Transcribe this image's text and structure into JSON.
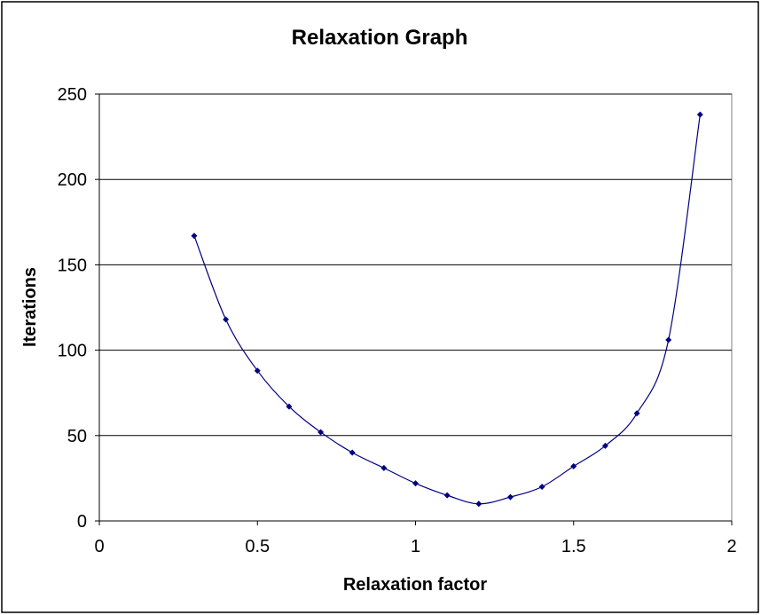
{
  "chart_data": {
    "type": "scatter",
    "title": "Relaxation Graph",
    "xlabel": "Relaxation factor",
    "ylabel": "Iterations",
    "xlim": [
      0,
      2
    ],
    "ylim": [
      0,
      250
    ],
    "x_ticks": [
      "0",
      "0.5",
      "1",
      "1.5",
      "2"
    ],
    "y_ticks": [
      "0",
      "50",
      "100",
      "150",
      "200",
      "250"
    ],
    "grid": "horizontal",
    "legend": "none",
    "series": [
      {
        "color": "#000080",
        "marker": "diamond",
        "line": "smoothed",
        "points": [
          [
            0.3,
            167
          ],
          [
            0.4,
            118
          ],
          [
            0.5,
            88
          ],
          [
            0.6,
            67
          ],
          [
            0.7,
            52
          ],
          [
            0.8,
            40
          ],
          [
            0.9,
            31
          ],
          [
            1.0,
            22
          ],
          [
            1.1,
            15
          ],
          [
            1.2,
            10
          ],
          [
            1.3,
            14
          ],
          [
            1.4,
            20
          ],
          [
            1.5,
            32
          ],
          [
            1.6,
            44
          ],
          [
            1.7,
            63
          ],
          [
            1.8,
            106
          ],
          [
            1.9,
            238
          ]
        ]
      }
    ]
  }
}
